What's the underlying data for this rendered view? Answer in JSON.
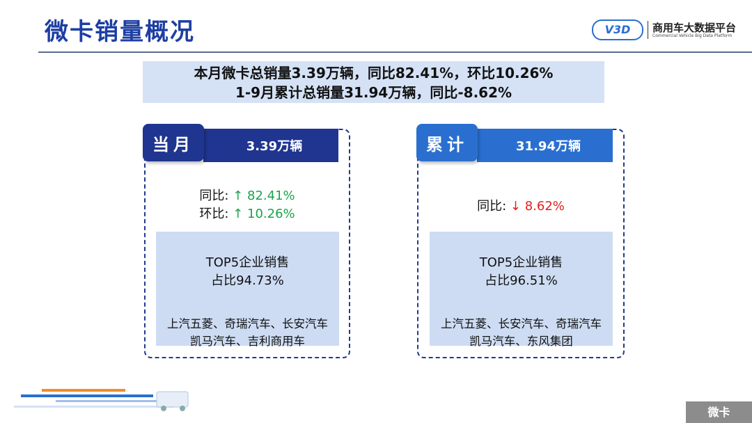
{
  "header": {
    "title": "微卡销量概况",
    "logo_mark": "V3D",
    "logo_cn": "商用车大数据平台",
    "logo_en": "Commercial Vehicle Big Data Platform"
  },
  "summary": {
    "line1": "本月微卡总销量3.39万辆，同比82.41%，环比10.26%",
    "line2": "1-9月累计总销量31.94万辆，同比-8.62%"
  },
  "monthly": {
    "tab": "当月",
    "value": "3.39万辆",
    "yoy_label": "同比:",
    "yoy_arrow": "↑",
    "yoy": "82.41%",
    "mom_label": "环比:",
    "mom_arrow": "↑",
    "mom": "10.26%",
    "top5_title": "TOP5企业销售",
    "top5_share": "占比94.73%",
    "companies_line1": "上汽五菱、奇瑞汽车、长安汽车",
    "companies_line2": "凯马汽车、吉利商用车"
  },
  "cumulative": {
    "tab": "累计",
    "value": "31.94万辆",
    "yoy_label": "同比:",
    "yoy_arrow": "↓",
    "yoy": "8.62%",
    "top5_title": "TOP5企业销售",
    "top5_share": "占比96.51%",
    "companies_line1": "上汽五菱、长安汽车、奇瑞汽车",
    "companies_line2": "凯马汽车、东风集团"
  },
  "footer": {
    "tag": "微卡"
  },
  "colors": {
    "title": "#1d3ea3",
    "monthly_tab": "#1f3590",
    "cumulative_tab": "#2a6fd0",
    "up": "#1aa24a",
    "down": "#e02020",
    "panel": "#cddcf3"
  }
}
